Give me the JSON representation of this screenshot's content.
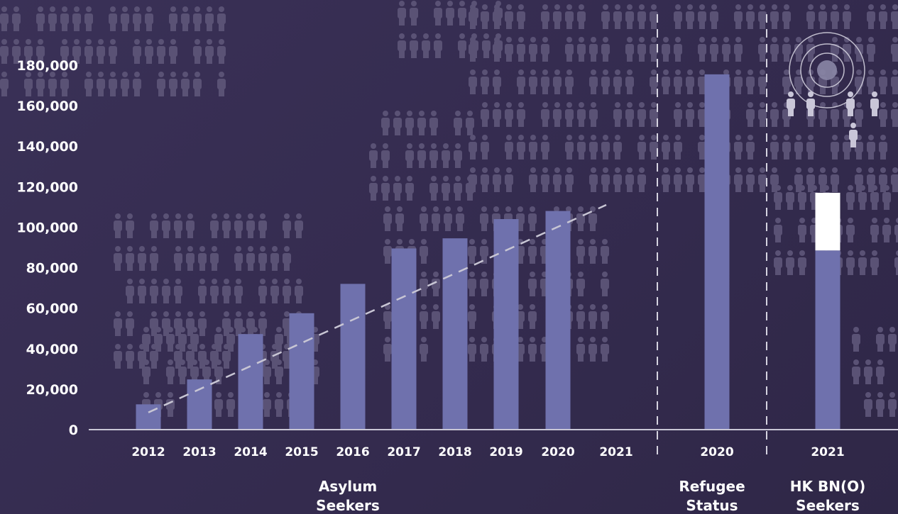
{
  "colors": {
    "bar": "#6f71ad",
    "bar_top_segment": "#ffffff",
    "axis": "#c9c7d6",
    "text": "#ffffff",
    "trendline": "#c8c6d4",
    "divider": "#d5d3e0",
    "people_icons": "#5a5275"
  },
  "decoration": {
    "background_icon": "person-crowd-icon",
    "target_icon": "concentric-target-icon"
  },
  "chart_data": {
    "type": "bar",
    "title": "",
    "xlabel": "",
    "ylabel": "",
    "ylim": [
      0,
      190000
    ],
    "yticks": [
      0,
      20000,
      40000,
      60000,
      80000,
      100000,
      120000,
      140000,
      160000,
      180000
    ],
    "ytick_labels": [
      "0",
      "20,000",
      "40,000",
      "60,000",
      "80,000",
      "100,000",
      "120,000",
      "140,000",
      "160,000",
      "180,000"
    ],
    "grid": false,
    "legend": "none",
    "groups": [
      {
        "label_lines": [
          "Asylum",
          "Seekers"
        ],
        "categories": [
          "2012",
          "2013",
          "2014",
          "2015",
          "2016",
          "2017",
          "2018",
          "2019",
          "2020",
          "2021"
        ],
        "values": [
          12500,
          24800,
          47200,
          57500,
          72000,
          89500,
          94500,
          104000,
          108000,
          null
        ],
        "trendline": {
          "style": "dashed",
          "from": [
            "2012",
            8500
          ],
          "to": [
            "2021",
            111000
          ]
        }
      },
      {
        "label_lines": [
          "Refugee",
          "Status"
        ],
        "categories": [
          "2020"
        ],
        "values": [
          175500
        ]
      },
      {
        "label_lines": [
          "HK BN(O)",
          "Seekers"
        ],
        "categories": [
          "2021"
        ],
        "values": [
          88500
        ],
        "stacked_top": [
          28500
        ]
      }
    ]
  }
}
